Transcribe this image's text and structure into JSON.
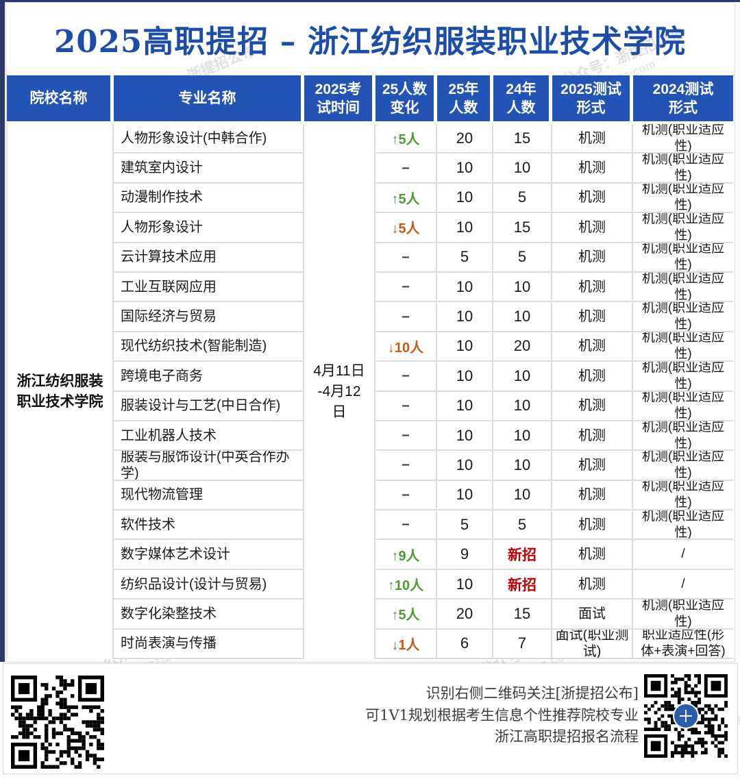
{
  "page": {
    "title": "2025高职提招 – 浙江纺织服装职业技术学院",
    "watermark": {
      "line1": "公众号：浙提招公布",
      "line2": "www.zjgztz.com"
    }
  },
  "colors": {
    "title_blue": "#1c4da8",
    "header_blue": "#2353b5",
    "increase_green": "#4e9a35",
    "decrease_orange": "#c55a11",
    "new_red": "#c00000"
  },
  "table": {
    "headers": [
      "院校名称",
      "专业名称",
      "2025考\n试时间",
      "25人数\n变化",
      "25年\n人数",
      "24年\n人数",
      "2025测试\n形式",
      "2024测试\n形式"
    ],
    "college": "浙江纺织服装\n职业技术学院",
    "exam_time": "4月11日\n-4月12\n日",
    "rows": [
      {
        "major": "人物形象设计(中韩合作)",
        "change": "↑5人",
        "dir": "up",
        "n2025": "20",
        "n2024": "15",
        "test2025": "机测",
        "test2024": "机测(职业适应性)"
      },
      {
        "major": "建筑室内设计",
        "change": "–",
        "dir": "none",
        "n2025": "10",
        "n2024": "10",
        "test2025": "机测",
        "test2024": "机测(职业适应性)"
      },
      {
        "major": "动漫制作技术",
        "change": "↑5人",
        "dir": "up",
        "n2025": "10",
        "n2024": "5",
        "test2025": "机测",
        "test2024": "机测(职业适应性)"
      },
      {
        "major": "人物形象设计",
        "change": "↓5人",
        "dir": "down",
        "n2025": "10",
        "n2024": "15",
        "test2025": "机测",
        "test2024": "机测(职业适应性)"
      },
      {
        "major": "云计算技术应用",
        "change": "–",
        "dir": "none",
        "n2025": "5",
        "n2024": "5",
        "test2025": "机测",
        "test2024": "机测(职业适应性)"
      },
      {
        "major": "工业互联网应用",
        "change": "–",
        "dir": "none",
        "n2025": "10",
        "n2024": "10",
        "test2025": "机测",
        "test2024": "机测(职业适应性)"
      },
      {
        "major": "国际经济与贸易",
        "change": "–",
        "dir": "none",
        "n2025": "10",
        "n2024": "10",
        "test2025": "机测",
        "test2024": "机测(职业适应性)"
      },
      {
        "major": "现代纺织技术(智能制造)",
        "change": "↓10人",
        "dir": "down",
        "n2025": "10",
        "n2024": "20",
        "test2025": "机测",
        "test2024": "机测(职业适应性)"
      },
      {
        "major": "跨境电子商务",
        "change": "–",
        "dir": "none",
        "n2025": "10",
        "n2024": "10",
        "test2025": "机测",
        "test2024": "机测(职业适应性)"
      },
      {
        "major": "服装设计与工艺(中日合作)",
        "change": "–",
        "dir": "none",
        "n2025": "10",
        "n2024": "10",
        "test2025": "机测",
        "test2024": "机测(职业适应性)"
      },
      {
        "major": "工业机器人技术",
        "change": "–",
        "dir": "none",
        "n2025": "10",
        "n2024": "10",
        "test2025": "机测",
        "test2024": "机测(职业适应性)"
      },
      {
        "major": "服装与服饰设计(中英合作办学)",
        "change": "–",
        "dir": "none",
        "n2025": "10",
        "n2024": "10",
        "test2025": "机测",
        "test2024": "机测(职业适应性)"
      },
      {
        "major": "现代物流管理",
        "change": "–",
        "dir": "none",
        "n2025": "10",
        "n2024": "10",
        "test2025": "机测",
        "test2024": "机测(职业适应性)"
      },
      {
        "major": "软件技术",
        "change": "–",
        "dir": "none",
        "n2025": "5",
        "n2024": "5",
        "test2025": "机测",
        "test2024": "机测(职业适应性)"
      },
      {
        "major": "数字媒体艺术设计",
        "change": "↑9人",
        "dir": "up",
        "n2025": "9",
        "n2024": "新招",
        "test2025": "机测",
        "test2024": "/"
      },
      {
        "major": "纺织品设计(设计与贸易)",
        "change": "↑10人",
        "dir": "up",
        "n2025": "10",
        "n2024": "新招",
        "test2025": "机测",
        "test2024": "/"
      },
      {
        "major": "数字化染整技术",
        "change": "↑5人",
        "dir": "up",
        "n2025": "20",
        "n2024": "15",
        "test2025": "面试",
        "test2024": "机测(职业适应性)"
      },
      {
        "major": "时尚表演与传播",
        "change": "↓1人",
        "dir": "down",
        "n2025": "6",
        "n2024": "7",
        "test2025": "面试(职业测试)",
        "test2024": "职业适应性(形体+表演+回答)"
      }
    ]
  },
  "footer": {
    "lines": [
      "识别右侧二维码关注[浙提招公布]",
      "可1V1规划根据考生信息个性推荐院校专业",
      "浙江高职提招报名流程"
    ]
  }
}
